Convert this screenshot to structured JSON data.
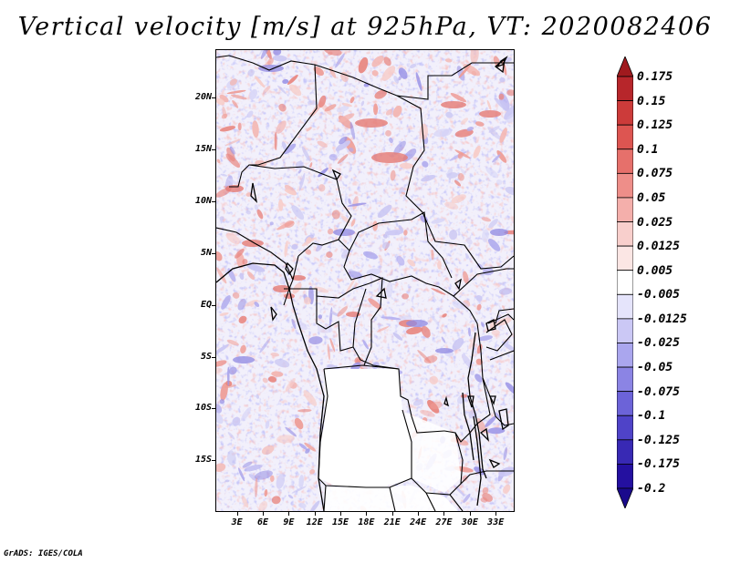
{
  "title": "Vertical velocity [m/s] at 925hPa, VT: 2020082406",
  "credit": "GrADS: IGES/COLA",
  "map": {
    "lat_ticks": [
      {
        "label": "20N",
        "lat": 20
      },
      {
        "label": "15N",
        "lat": 15
      },
      {
        "label": "10N",
        "lat": 10
      },
      {
        "label": "5N",
        "lat": 5
      },
      {
        "label": "EQ",
        "lat": 0
      },
      {
        "label": "5S",
        "lat": -5
      },
      {
        "label": "10S",
        "lat": -10
      },
      {
        "label": "15S",
        "lat": -15
      }
    ],
    "lon_ticks": [
      {
        "label": "3E",
        "lon": 3
      },
      {
        "label": "6E",
        "lon": 6
      },
      {
        "label": "9E",
        "lon": 9
      },
      {
        "label": "12E",
        "lon": 12
      },
      {
        "label": "15E",
        "lon": 15
      },
      {
        "label": "18E",
        "lon": 18
      },
      {
        "label": "21E",
        "lon": 21
      },
      {
        "label": "24E",
        "lon": 24
      },
      {
        "label": "27E",
        "lon": 27
      },
      {
        "label": "30E",
        "lon": 30
      },
      {
        "label": "33E",
        "lon": 33
      }
    ],
    "lon_range": [
      0.5,
      35.2
    ],
    "lat_range": [
      -20,
      24.7
    ]
  },
  "colorbar": {
    "labels": [
      "0.175",
      "0.15",
      "0.125",
      "0.1",
      "0.075",
      "0.05",
      "0.025",
      "0.0125",
      "0.005",
      "-0.005",
      "-0.0125",
      "-0.025",
      "-0.05",
      "-0.075",
      "-0.1",
      "-0.125",
      "-0.175",
      "-0.2"
    ],
    "colors": [
      "#a01a1e",
      "#b7262b",
      "#cc3b3a",
      "#dd5551",
      "#e6706b",
      "#ee8e89",
      "#f4afab",
      "#f8cfcc",
      "#fbe6e4",
      "#ffffff",
      "#e5e4fb",
      "#cbc8f5",
      "#aaa6ee",
      "#8b84e4",
      "#6c63d8",
      "#4f43c8",
      "#3829b4",
      "#2410a0",
      "#1a0a8c"
    ]
  }
}
